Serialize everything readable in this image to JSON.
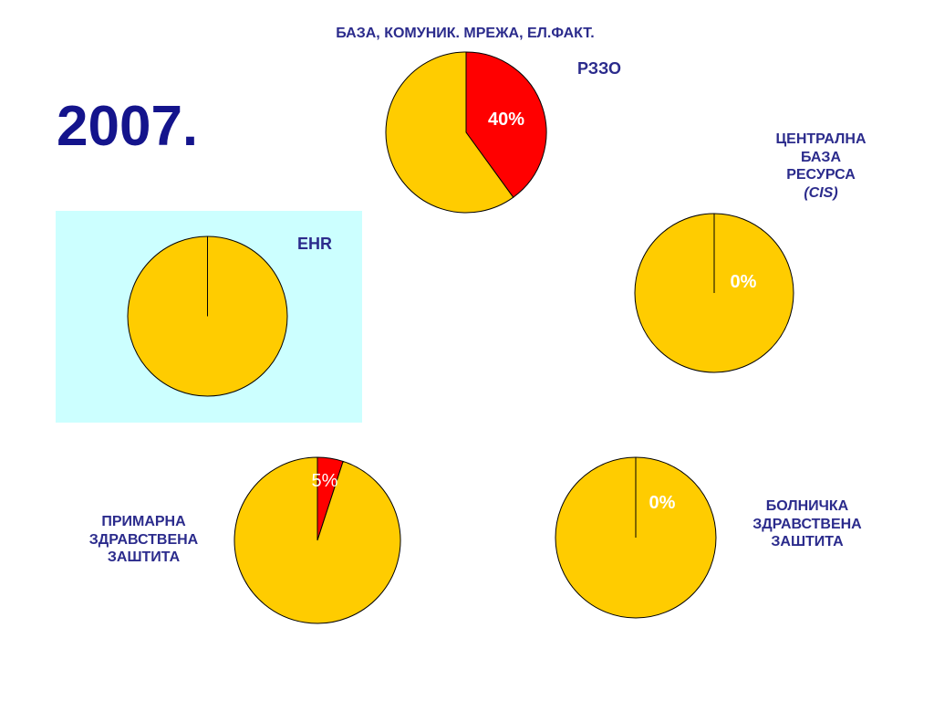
{
  "year": "2007.",
  "colors": {
    "slice_value": "#ff0000",
    "slice_rest": "#ffcc00",
    "outline": "#000000",
    "label_text": "#2b2b8c",
    "year_text": "#14148c",
    "ehr_background": "#ccffff",
    "percent_text": "#ffffff"
  },
  "chart_data": [
    {
      "type": "pie",
      "title": "БАЗА, КОМУНИК. МРЕЖА, ЕЛ.ФАКТ.",
      "label": "РЗЗО",
      "values": [
        40,
        60
      ],
      "value_label": "40%"
    },
    {
      "type": "pie",
      "label_lines": [
        "ЦЕНТРАЛНА",
        "БАЗА",
        "РЕСУРСА",
        "(CIS)"
      ],
      "values": [
        0,
        100
      ],
      "value_label": "0%"
    },
    {
      "type": "pie",
      "label": "EHR",
      "values": [
        0,
        100
      ],
      "value_label": ""
    },
    {
      "type": "pie",
      "label_lines": [
        "ПРИМАРНА",
        "ЗДРАВСТВЕНА",
        "ЗАШТИТА"
      ],
      "values": [
        5,
        95
      ],
      "value_label": "5%"
    },
    {
      "type": "pie",
      "label_lines": [
        "БОЛНИЧКА",
        "ЗДРАВСТВЕНА",
        "ЗАШТИТА"
      ],
      "values": [
        0,
        100
      ],
      "value_label": "0%"
    }
  ]
}
